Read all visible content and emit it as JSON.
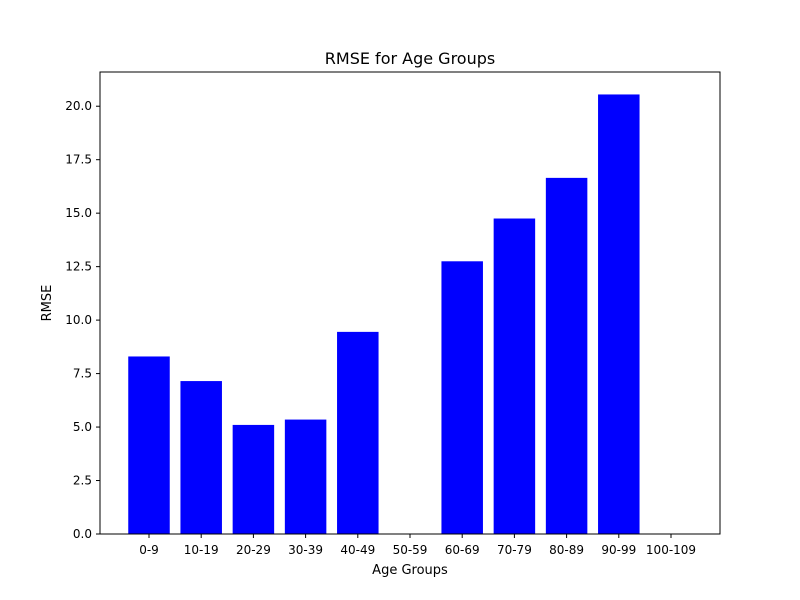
{
  "chart_data": {
    "type": "bar",
    "title": "RMSE for Age Groups",
    "xlabel": "Age Groups",
    "ylabel": "RMSE",
    "categories": [
      "0-9",
      "10-19",
      "20-29",
      "30-39",
      "40-49",
      "50-59",
      "60-69",
      "70-79",
      "80-89",
      "90-99",
      "100-109"
    ],
    "values": [
      8.3,
      7.15,
      5.1,
      5.35,
      9.45,
      0,
      12.75,
      14.75,
      16.65,
      20.55,
      0
    ],
    "ylim": [
      0,
      21.6
    ],
    "yticks": [
      0.0,
      2.5,
      5.0,
      7.5,
      10.0,
      12.5,
      15.0,
      17.5,
      20.0
    ],
    "ytick_labels": [
      "0.0",
      "2.5",
      "5.0",
      "7.5",
      "10.0",
      "12.5",
      "15.0",
      "17.5",
      "20.0"
    ],
    "bar_color": "#0000ff",
    "grid": false,
    "legend": "none"
  }
}
